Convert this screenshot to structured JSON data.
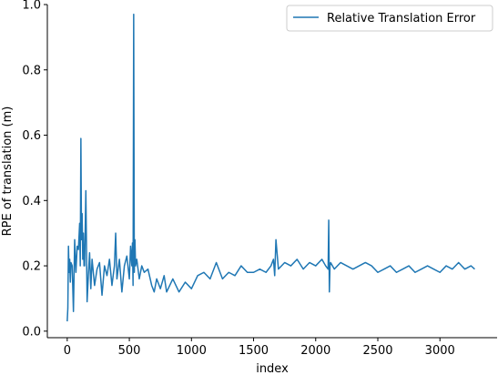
{
  "chart_data": {
    "type": "line",
    "xlabel": "index",
    "ylabel": "RPE of translation (m)",
    "xlim": [
      -160,
      3460
    ],
    "ylim": [
      -0.02,
      1.0
    ],
    "xticks": [
      0,
      500,
      1000,
      1500,
      2000,
      2500,
      3000
    ],
    "xtick_labels": [
      "0",
      "500",
      "1000",
      "1500",
      "2000",
      "2500",
      "3000"
    ],
    "yticks": [
      0.0,
      0.2,
      0.4,
      0.6,
      0.8,
      1.0
    ],
    "ytick_labels": [
      "0.0",
      "0.2",
      "0.4",
      "0.6",
      "0.8",
      "1.0"
    ],
    "grid": false,
    "legend_position": "top-right",
    "series": [
      {
        "name": "Relative Translation Error",
        "color": "#1f77b4",
        "x": [
          0,
          5,
          10,
          15,
          20,
          25,
          30,
          40,
          50,
          60,
          70,
          80,
          90,
          100,
          105,
          110,
          115,
          120,
          125,
          130,
          135,
          140,
          150,
          160,
          170,
          180,
          190,
          200,
          220,
          240,
          260,
          280,
          300,
          320,
          340,
          360,
          380,
          390,
          400,
          420,
          440,
          460,
          480,
          500,
          510,
          520,
          525,
          530,
          535,
          540,
          545,
          550,
          560,
          580,
          600,
          620,
          650,
          680,
          700,
          720,
          750,
          780,
          800,
          850,
          900,
          950,
          1000,
          1050,
          1100,
          1150,
          1200,
          1250,
          1300,
          1350,
          1400,
          1450,
          1500,
          1550,
          1600,
          1640,
          1660,
          1670,
          1680,
          1700,
          1750,
          1800,
          1850,
          1900,
          1950,
          2000,
          2050,
          2080,
          2100,
          2105,
          2110,
          2115,
          2120,
          2150,
          2200,
          2250,
          2300,
          2350,
          2400,
          2450,
          2500,
          2550,
          2600,
          2650,
          2700,
          2750,
          2800,
          2850,
          2900,
          2950,
          3000,
          3050,
          3100,
          3150,
          3200,
          3250,
          3280
        ],
        "y": [
          0.03,
          0.07,
          0.26,
          0.18,
          0.22,
          0.15,
          0.21,
          0.2,
          0.06,
          0.28,
          0.18,
          0.26,
          0.25,
          0.33,
          0.2,
          0.59,
          0.28,
          0.36,
          0.22,
          0.3,
          0.2,
          0.2,
          0.43,
          0.09,
          0.17,
          0.24,
          0.13,
          0.22,
          0.14,
          0.19,
          0.21,
          0.11,
          0.2,
          0.17,
          0.22,
          0.14,
          0.2,
          0.3,
          0.16,
          0.22,
          0.12,
          0.2,
          0.23,
          0.16,
          0.26,
          0.2,
          0.27,
          0.14,
          0.97,
          0.18,
          0.28,
          0.2,
          0.22,
          0.16,
          0.2,
          0.18,
          0.19,
          0.14,
          0.12,
          0.16,
          0.13,
          0.17,
          0.12,
          0.16,
          0.12,
          0.15,
          0.13,
          0.17,
          0.18,
          0.16,
          0.21,
          0.16,
          0.18,
          0.17,
          0.2,
          0.18,
          0.18,
          0.19,
          0.18,
          0.2,
          0.22,
          0.17,
          0.28,
          0.19,
          0.21,
          0.2,
          0.22,
          0.19,
          0.21,
          0.2,
          0.22,
          0.2,
          0.19,
          0.34,
          0.12,
          0.2,
          0.21,
          0.19,
          0.21,
          0.2,
          0.19,
          0.2,
          0.21,
          0.2,
          0.18,
          0.19,
          0.2,
          0.18,
          0.19,
          0.2,
          0.18,
          0.19,
          0.2,
          0.19,
          0.18,
          0.2,
          0.19,
          0.21,
          0.19,
          0.2,
          0.19
        ]
      }
    ]
  }
}
